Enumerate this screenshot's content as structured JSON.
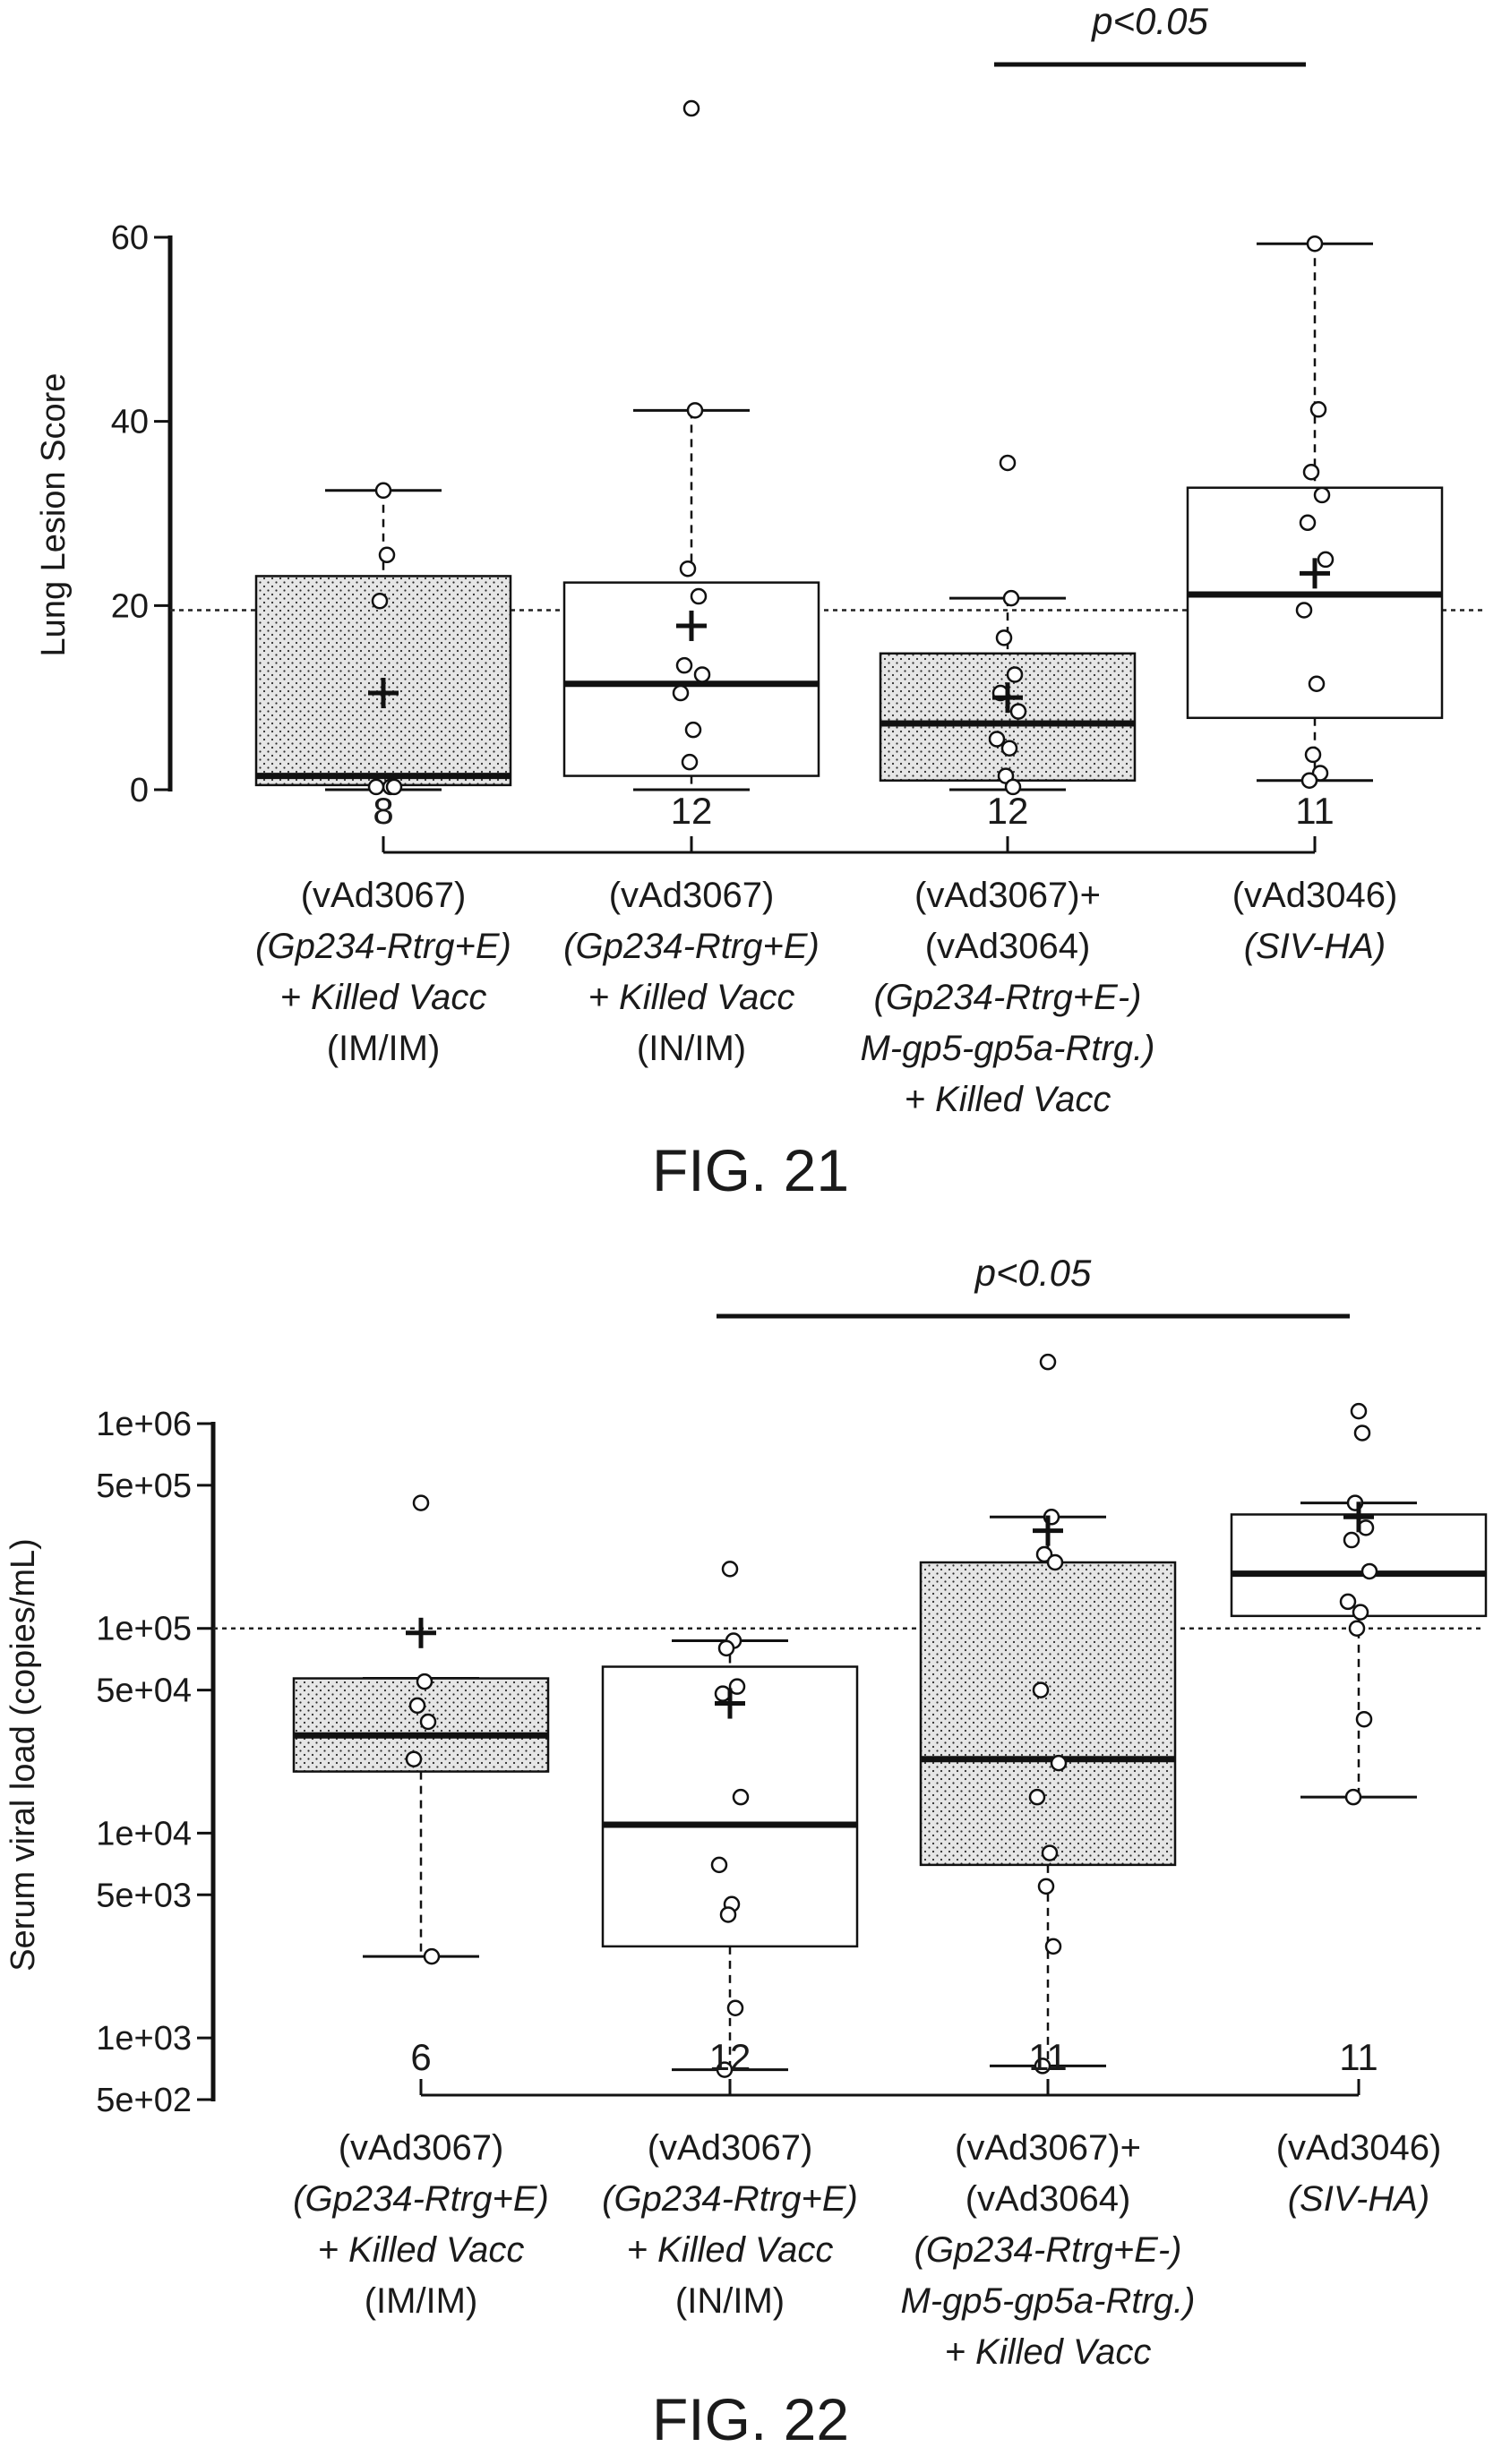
{
  "chart_data": [
    {
      "type": "box",
      "figure_label": "FIG. 21",
      "ylabel": "Lung Lesion Score",
      "y_scale": "linear",
      "ylim": [
        0,
        60
      ],
      "yticks": [
        0,
        20,
        40,
        60
      ],
      "ytick_labels": [
        "0",
        "20",
        "40",
        "60"
      ],
      "reference_line": 19.5,
      "significance": {
        "label": "p<0.05",
        "from_group": 2,
        "to_group": 3
      },
      "groups": [
        {
          "n": "8",
          "label_lines": [
            {
              "text": "(vAd3067)",
              "italic": false
            },
            {
              "text": "(Gp234-Rtrg+E)",
              "italic": true
            },
            {
              "text": "+ Killed Vacc",
              "italic": true
            },
            {
              "text": "(IM/IM)",
              "italic": false
            }
          ],
          "fill": "dotted",
          "q1": 0.5,
          "median": 1.5,
          "q3": 23.2,
          "whisker_low": 0,
          "whisker_high": 32.5,
          "mean": 10.5,
          "points": [
            32.5,
            25.5,
            20.5,
            0.3,
            0.3,
            0.3
          ]
        },
        {
          "n": "12",
          "label_lines": [
            {
              "text": "(vAd3067)",
              "italic": false
            },
            {
              "text": "(Gp234-Rtrg+E)",
              "italic": true
            },
            {
              "text": "+ Killed Vacc",
              "italic": true
            },
            {
              "text": "(IN/IM)",
              "italic": false
            }
          ],
          "fill": "none",
          "q1": 1.5,
          "median": 11.5,
          "q3": 22.5,
          "whisker_low": 0,
          "whisker_high": 41.2,
          "mean": 17.8,
          "points": [
            74,
            41.2,
            24,
            21,
            13.5,
            12.5,
            10.5,
            6.5,
            3
          ]
        },
        {
          "n": "12",
          "label_lines": [
            {
              "text": "(vAd3067)+",
              "italic": false
            },
            {
              "text": "(vAd3064)",
              "italic": false
            },
            {
              "text": "(Gp234-Rtrg+E-)",
              "italic": true
            },
            {
              "text": "M-gp5-gp5a-Rtrg.)",
              "italic": true
            },
            {
              "text": "+ Killed Vacc",
              "italic": true
            }
          ],
          "fill": "dotted",
          "q1": 1,
          "median": 7.2,
          "q3": 14.8,
          "whisker_low": 0,
          "whisker_high": 20.8,
          "mean": 10,
          "points": [
            35.5,
            20.8,
            16.5,
            12.5,
            10.5,
            8.5,
            5.5,
            4.5,
            1.5,
            0.3
          ]
        },
        {
          "n": "11",
          "label_lines": [
            {
              "text": "(vAd3046)",
              "italic": false
            },
            {
              "text": "(SIV-HA)",
              "italic": true
            }
          ],
          "fill": "none",
          "q1": 7.8,
          "median": 21.2,
          "q3": 32.8,
          "whisker_low": 1,
          "whisker_high": 59.3,
          "mean": 23.5,
          "points": [
            59.3,
            41.3,
            34.5,
            32,
            29,
            25,
            19.5,
            11.5,
            3.8,
            1.8,
            1
          ]
        }
      ]
    },
    {
      "type": "box",
      "figure_label": "FIG. 22",
      "ylabel": "Serum viral load (copies/mL)",
      "y_scale": "log",
      "ylim": [
        500,
        1000000
      ],
      "yticks": [
        500,
        1000,
        5000,
        10000,
        50000,
        100000,
        500000,
        1000000
      ],
      "ytick_labels": [
        "5e+02",
        "1e+03",
        "5e+03",
        "1e+04",
        "5e+04",
        "1e+05",
        "5e+05",
        "1e+06"
      ],
      "reference_line": 100000,
      "significance": {
        "label": "p<0.05",
        "from_group": 1,
        "to_group": 3
      },
      "groups": [
        {
          "n": "6",
          "label_lines": [
            {
              "text": "(vAd3067)",
              "italic": false
            },
            {
              "text": "(Gp234-Rtrg+E)",
              "italic": true
            },
            {
              "text": "+ Killed Vacc",
              "italic": true
            },
            {
              "text": "(IM/IM)",
              "italic": false
            }
          ],
          "fill": "dotted",
          "q1": 20000,
          "median": 30000,
          "q3": 57000,
          "whisker_low": 2500,
          "whisker_high": 57000,
          "mean": 95000,
          "points": [
            410000,
            55000,
            42000,
            35000,
            23000,
            2500
          ]
        },
        {
          "n": "12",
          "label_lines": [
            {
              "text": "(vAd3067)",
              "italic": false
            },
            {
              "text": "(Gp234-Rtrg+E)",
              "italic": true
            },
            {
              "text": "+ Killed Vacc",
              "italic": true
            },
            {
              "text": "(IN/IM)",
              "italic": false
            }
          ],
          "fill": "none",
          "q1": 2800,
          "median": 11000,
          "q3": 65000,
          "whisker_low": 700,
          "whisker_high": 87000,
          "mean": 43000,
          "points": [
            195000,
            87000,
            80000,
            52000,
            48000,
            15000,
            7000,
            4500,
            4000,
            1400,
            700
          ]
        },
        {
          "n": "11",
          "label_lines": [
            {
              "text": "(vAd3067)+",
              "italic": false
            },
            {
              "text": "(vAd3064)",
              "italic": false
            },
            {
              "text": "(Gp234-Rtrg+E-)",
              "italic": true
            },
            {
              "text": "M-gp5-gp5a-Rtrg.)",
              "italic": true
            },
            {
              "text": "+ Killed Vacc",
              "italic": true
            }
          ],
          "fill": "dotted",
          "q1": 7000,
          "median": 23000,
          "q3": 210000,
          "whisker_low": 730,
          "whisker_high": 350000,
          "mean": 300000,
          "points": [
            2000000,
            350000,
            230000,
            210000,
            50000,
            22000,
            15000,
            8000,
            5500,
            2800,
            730
          ]
        },
        {
          "n": "11",
          "label_lines": [
            {
              "text": "(vAd3046)",
              "italic": false
            },
            {
              "text": "(SIV-HA)",
              "italic": true
            }
          ],
          "fill": "none",
          "q1": 115000,
          "median": 185000,
          "q3": 360000,
          "whisker_low": 15000,
          "whisker_high": 410000,
          "mean": 350000,
          "points": [
            1150000,
            900000,
            410000,
            310000,
            270000,
            190000,
            135000,
            120000,
            100000,
            36000,
            15000
          ]
        }
      ]
    }
  ]
}
